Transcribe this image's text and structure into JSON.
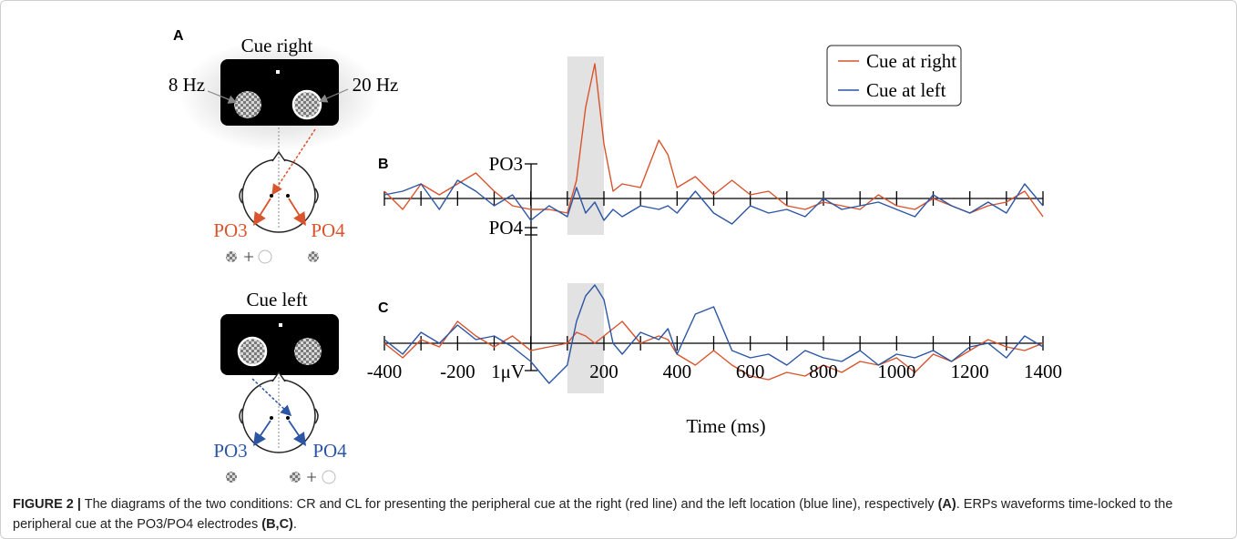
{
  "panel_labels": [
    "A",
    "B",
    "C"
  ],
  "diagram": {
    "cue_right": {
      "title": "Cue right",
      "left_freq": "8 Hz",
      "right_freq": "20 Hz",
      "left_electrode": "PO3",
      "right_electrode": "PO4"
    },
    "cue_left": {
      "title": "Cue left",
      "left_electrode": "PO3",
      "right_electrode": "PO4"
    }
  },
  "chart_data": {
    "type": "line",
    "x": [
      -400,
      -350,
      -300,
      -250,
      -200,
      -150,
      -100,
      -50,
      0,
      50,
      100,
      125,
      150,
      175,
      200,
      225,
      250,
      300,
      350,
      375,
      400,
      450,
      500,
      550,
      600,
      650,
      700,
      750,
      800,
      850,
      900,
      950,
      1000,
      1050,
      1100,
      1150,
      1200,
      1250,
      1300,
      1350,
      1400
    ],
    "xlim": [
      -400,
      1400
    ],
    "xticks": [
      -400,
      -200,
      200,
      400,
      600,
      800,
      1000,
      1200,
      1400
    ],
    "minor_xticks": [
      -300,
      -100,
      0,
      100,
      300,
      500,
      700,
      900,
      1100,
      1300
    ],
    "xlabel": "Time (ms)",
    "shaded_region": [
      100,
      200
    ],
    "scale_bar_label": "1μV",
    "panels": [
      {
        "label": "PO3",
        "ylim": [
          -1.5,
          4
        ],
        "series": [
          {
            "name": "Cue at right",
            "color": "#d9532c",
            "values": [
              0.2,
              -0.3,
              0.4,
              0.1,
              0.4,
              0.7,
              0.2,
              -0.2,
              -0.3,
              -0.3,
              -0.4,
              0.5,
              2.5,
              3.7,
              1.5,
              0.2,
              0.4,
              0.3,
              1.6,
              1.2,
              0.3,
              0.6,
              0.1,
              0.5,
              0.1,
              0.2,
              -0.2,
              -0.3,
              -0.1,
              -0.2,
              -0.3,
              0.1,
              -0.2,
              -0.3,
              0.0,
              -0.2,
              -0.4,
              -0.2,
              -0.1,
              0.2,
              -0.5
            ]
          },
          {
            "name": "Cue at left",
            "color": "#2c55a4",
            "values": [
              0.1,
              0.2,
              0.4,
              -0.3,
              0.5,
              0.2,
              -0.2,
              0.1,
              -0.6,
              -0.2,
              -0.5,
              0.3,
              -0.4,
              -0.1,
              -0.6,
              -0.3,
              -0.5,
              -0.2,
              -0.3,
              -0.2,
              -0.4,
              0.2,
              -0.4,
              -0.7,
              -0.2,
              -0.4,
              -0.3,
              -0.5,
              0.0,
              -0.3,
              -0.2,
              -0.1,
              -0.3,
              -0.5,
              0.1,
              -0.2,
              -0.4,
              -0.1,
              -0.4,
              0.4,
              -0.2
            ]
          }
        ]
      },
      {
        "label": "PO4",
        "ylim": [
          -1.5,
          2.5
        ],
        "series": [
          {
            "color": "#d9532c",
            "values": [
              0.0,
              -0.4,
              0.1,
              -0.1,
              0.6,
              0.2,
              -0.1,
              0.2,
              -0.2,
              -0.1,
              0.0,
              0.3,
              0.2,
              0.0,
              0.2,
              0.4,
              0.6,
              0.0,
              0.2,
              0.1,
              -0.3,
              -0.6,
              -0.2,
              -0.6,
              -0.9,
              -1.0,
              -0.8,
              -0.9,
              -0.6,
              -0.8,
              -0.5,
              -0.6,
              -0.4,
              -0.8,
              -0.3,
              -0.5,
              -0.2,
              0.1,
              -0.1,
              -0.2,
              0.0
            ]
          },
          {
            "color": "#2c55a4",
            "values": [
              0.1,
              -0.3,
              0.3,
              0.0,
              0.5,
              0.1,
              0.2,
              -0.1,
              -0.5,
              -1.1,
              -0.6,
              0.6,
              1.3,
              1.6,
              1.2,
              0.0,
              -0.3,
              0.3,
              0.1,
              0.4,
              -0.3,
              0.8,
              1.0,
              -0.2,
              -0.4,
              -0.3,
              -0.6,
              -0.2,
              -0.4,
              -0.5,
              -0.2,
              -0.6,
              -0.3,
              -0.4,
              -0.2,
              -0.5,
              -0.1,
              0.0,
              -0.4,
              0.2,
              -0.1
            ]
          }
        ]
      }
    ]
  },
  "caption": {
    "label": "FIGURE 2 |",
    "text1": " The diagrams of the two conditions: CR and CL for presenting the peripheral cue at the right (red line) and the left location (blue line), respectively ",
    "ref1": "(A)",
    "text2": ". ERPs waveforms time-locked to the peripheral cue at the PO3/PO4 electrodes ",
    "ref2": "(B,C)",
    "end": "."
  }
}
